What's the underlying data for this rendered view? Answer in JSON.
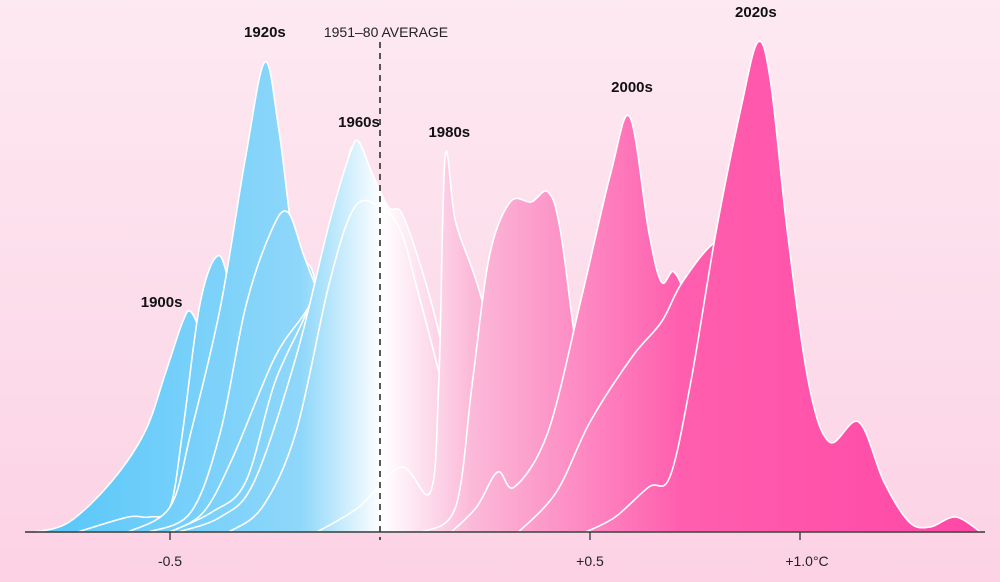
{
  "chart_data": {
    "type": "area",
    "title": "",
    "xlabel": "",
    "ylabel": "",
    "x_unit": "°C",
    "xlim": [
      -0.82,
      1.43
    ],
    "x_ticks": [
      {
        "value": -0.5,
        "label": "-0.5"
      },
      {
        "value": 0.5,
        "label": "+0.5"
      },
      {
        "value": 1.0,
        "label": "+1.0°C"
      }
    ],
    "reference_line": {
      "value": 0,
      "label": "1951–80 AVERAGE",
      "style": "dashed"
    },
    "grid": false,
    "legend": "none (direct labels on peaks)",
    "gradient_colors": {
      "cold": "#55c6f9",
      "neutral": "#ffffff",
      "warm": "#ff47a6"
    },
    "outline_color": "#ffffff",
    "series": [
      {
        "label": "1900s",
        "label_at": [
          -0.52,
          0.44
        ],
        "points": [
          [
            -0.82,
            0.0
          ],
          [
            -0.74,
            0.02
          ],
          [
            -0.64,
            0.1
          ],
          [
            -0.56,
            0.2
          ],
          [
            -0.51,
            0.32
          ],
          [
            -0.47,
            0.42
          ],
          [
            -0.45,
            0.44
          ],
          [
            -0.42,
            0.38
          ],
          [
            -0.35,
            0.2
          ],
          [
            -0.25,
            0.06
          ],
          [
            -0.15,
            0.0
          ]
        ]
      },
      {
        "points": [
          [
            -0.72,
            0.0
          ],
          [
            -0.6,
            0.03
          ],
          [
            -0.55,
            0.03
          ],
          [
            -0.5,
            0.05
          ],
          [
            -0.47,
            0.2
          ],
          [
            -0.43,
            0.45
          ],
          [
            -0.39,
            0.55
          ],
          [
            -0.36,
            0.5
          ],
          [
            -0.3,
            0.25
          ],
          [
            -0.2,
            0.06
          ],
          [
            -0.1,
            0.0
          ]
        ]
      },
      {
        "label": "1920s",
        "label_at": [
          -0.274,
          0.98
        ],
        "points": [
          [
            -0.6,
            0.0
          ],
          [
            -0.5,
            0.05
          ],
          [
            -0.45,
            0.2
          ],
          [
            -0.38,
            0.45
          ],
          [
            -0.32,
            0.75
          ],
          [
            -0.274,
            0.94
          ],
          [
            -0.24,
            0.8
          ],
          [
            -0.2,
            0.55
          ],
          [
            -0.16,
            0.52
          ],
          [
            -0.1,
            0.3
          ],
          [
            0.0,
            0.05
          ],
          [
            0.1,
            0.0
          ]
        ]
      },
      {
        "points": [
          [
            -0.55,
            0.0
          ],
          [
            -0.45,
            0.04
          ],
          [
            -0.38,
            0.2
          ],
          [
            -0.32,
            0.45
          ],
          [
            -0.26,
            0.6
          ],
          [
            -0.22,
            0.64
          ],
          [
            -0.18,
            0.55
          ],
          [
            -0.14,
            0.47
          ],
          [
            -0.1,
            0.45
          ],
          [
            -0.05,
            0.3
          ],
          [
            0.05,
            0.05
          ],
          [
            0.15,
            0.0
          ]
        ]
      },
      {
        "points": [
          [
            -0.5,
            0.0
          ],
          [
            -0.42,
            0.04
          ],
          [
            -0.35,
            0.15
          ],
          [
            -0.25,
            0.35
          ],
          [
            -0.17,
            0.45
          ],
          [
            -0.12,
            0.55
          ],
          [
            -0.08,
            0.73
          ],
          [
            -0.06,
            0.76
          ],
          [
            -0.02,
            0.6
          ],
          [
            0.05,
            0.3
          ],
          [
            0.15,
            0.05
          ],
          [
            0.25,
            0.0
          ]
        ]
      },
      {
        "points": [
          [
            -0.5,
            0.0
          ],
          [
            -0.4,
            0.04
          ],
          [
            -0.32,
            0.1
          ],
          [
            -0.25,
            0.3
          ],
          [
            -0.17,
            0.45
          ],
          [
            -0.12,
            0.6
          ],
          [
            -0.07,
            0.72
          ],
          [
            0.0,
            0.66
          ],
          [
            0.05,
            0.55
          ],
          [
            0.1,
            0.3
          ],
          [
            0.2,
            0.05
          ],
          [
            0.3,
            0.0
          ]
        ]
      },
      {
        "label": "1960s",
        "label_at": [
          -0.05,
          0.8
        ],
        "points": [
          [
            -0.48,
            0.0
          ],
          [
            -0.38,
            0.03
          ],
          [
            -0.3,
            0.1
          ],
          [
            -0.2,
            0.35
          ],
          [
            -0.12,
            0.62
          ],
          [
            -0.07,
            0.76
          ],
          [
            -0.05,
            0.78
          ],
          [
            -0.02,
            0.72
          ],
          [
            0.02,
            0.65
          ],
          [
            0.05,
            0.64
          ],
          [
            0.09,
            0.55
          ],
          [
            0.14,
            0.4
          ],
          [
            0.22,
            0.1
          ],
          [
            0.3,
            0.0
          ]
        ]
      },
      {
        "points": [
          [
            -0.36,
            0.0
          ],
          [
            -0.28,
            0.05
          ],
          [
            -0.2,
            0.2
          ],
          [
            -0.12,
            0.5
          ],
          [
            -0.06,
            0.65
          ],
          [
            0.0,
            0.65
          ],
          [
            0.05,
            0.6
          ],
          [
            0.1,
            0.45
          ],
          [
            0.2,
            0.15
          ],
          [
            0.3,
            0.03
          ],
          [
            0.4,
            0.0
          ]
        ]
      },
      {
        "label": "1980s",
        "label_at": [
          0.165,
          0.78
        ],
        "points": [
          [
            -0.15,
            0.0
          ],
          [
            -0.05,
            0.05
          ],
          [
            0.05,
            0.13
          ],
          [
            0.12,
            0.08
          ],
          [
            0.14,
            0.3
          ],
          [
            0.155,
            0.75
          ],
          [
            0.18,
            0.62
          ],
          [
            0.23,
            0.5
          ],
          [
            0.3,
            0.3
          ],
          [
            0.4,
            0.05
          ],
          [
            0.5,
            0.0
          ]
        ]
      },
      {
        "points": [
          [
            0.1,
            0.0
          ],
          [
            0.18,
            0.05
          ],
          [
            0.22,
            0.3
          ],
          [
            0.26,
            0.55
          ],
          [
            0.31,
            0.66
          ],
          [
            0.36,
            0.66
          ],
          [
            0.4,
            0.68
          ],
          [
            0.43,
            0.6
          ],
          [
            0.48,
            0.3
          ],
          [
            0.55,
            0.08
          ],
          [
            0.65,
            0.0
          ]
        ]
      },
      {
        "label": "2000s",
        "label_at": [
          0.6,
          0.87
        ],
        "points": [
          [
            0.17,
            0.0
          ],
          [
            0.23,
            0.05
          ],
          [
            0.28,
            0.12
          ],
          [
            0.32,
            0.09
          ],
          [
            0.4,
            0.2
          ],
          [
            0.48,
            0.47
          ],
          [
            0.55,
            0.72
          ],
          [
            0.595,
            0.83
          ],
          [
            0.64,
            0.6
          ],
          [
            0.67,
            0.5
          ],
          [
            0.7,
            0.52
          ],
          [
            0.73,
            0.45
          ],
          [
            0.78,
            0.2
          ],
          [
            0.9,
            0.03
          ],
          [
            1.0,
            0.0
          ]
        ]
      },
      {
        "points": [
          [
            0.33,
            0.0
          ],
          [
            0.42,
            0.08
          ],
          [
            0.5,
            0.22
          ],
          [
            0.6,
            0.35
          ],
          [
            0.67,
            0.42
          ],
          [
            0.72,
            0.5
          ],
          [
            0.8,
            0.58
          ],
          [
            0.85,
            0.55
          ],
          [
            0.95,
            0.3
          ],
          [
            1.05,
            0.1
          ],
          [
            1.15,
            0.0
          ]
        ]
      },
      {
        "label": "2020s",
        "label_at": [
          0.895,
          1.02
        ],
        "points": [
          [
            0.49,
            0.0
          ],
          [
            0.56,
            0.03
          ],
          [
            0.64,
            0.09
          ],
          [
            0.69,
            0.11
          ],
          [
            0.74,
            0.3
          ],
          [
            0.8,
            0.6
          ],
          [
            0.86,
            0.85
          ],
          [
            0.9,
            0.98
          ],
          [
            0.93,
            0.9
          ],
          [
            0.97,
            0.6
          ],
          [
            1.02,
            0.3
          ],
          [
            1.07,
            0.18
          ],
          [
            1.14,
            0.22
          ],
          [
            1.2,
            0.1
          ],
          [
            1.26,
            0.02
          ],
          [
            1.31,
            0.01
          ],
          [
            1.37,
            0.03
          ],
          [
            1.43,
            0.0
          ]
        ]
      }
    ]
  }
}
